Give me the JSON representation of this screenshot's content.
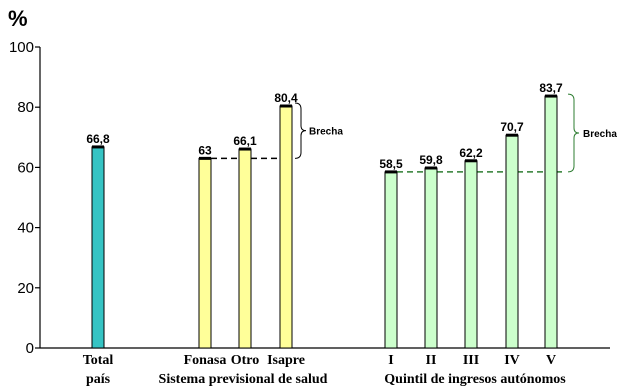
{
  "chart_data": {
    "type": "bar",
    "ylabel": "%",
    "ylim": [
      0,
      100
    ],
    "yticks": [
      0,
      20,
      40,
      60,
      80,
      100
    ],
    "grid": false,
    "bars": [
      {
        "label": "Total",
        "value": 66.8,
        "value_label": "66,8",
        "group": 0,
        "color": "#36c4c4"
      },
      {
        "label": "Fonasa",
        "value": 63,
        "value_label": "63",
        "group": 1,
        "color": "#ffff99"
      },
      {
        "label": "Otro",
        "value": 66.1,
        "value_label": "66,1",
        "group": 1,
        "color": "#ffff99"
      },
      {
        "label": "Isapre",
        "value": 80.4,
        "value_label": "80,4",
        "group": 1,
        "color": "#ffff99"
      },
      {
        "label": "I",
        "value": 58.5,
        "value_label": "58,5",
        "group": 2,
        "color": "#ccffcc"
      },
      {
        "label": "II",
        "value": 59.8,
        "value_label": "59,8",
        "group": 2,
        "color": "#ccffcc"
      },
      {
        "label": "III",
        "value": 62.2,
        "value_label": "62,2",
        "group": 2,
        "color": "#ccffcc"
      },
      {
        "label": "IV",
        "value": 70.7,
        "value_label": "70,7",
        "group": 2,
        "color": "#ccffcc"
      },
      {
        "label": "V",
        "value": 83.7,
        "value_label": "83,7",
        "group": 2,
        "color": "#ccffcc"
      }
    ],
    "group_labels": [
      "país",
      "Sistema previsional de salud",
      "Quintil de ingresos autónomos"
    ],
    "annotations": [
      {
        "text": "Brecha",
        "from_value": 63,
        "to_value": 80.4,
        "line_color": "#000000"
      },
      {
        "text": "Brecha",
        "from_value": 58.5,
        "to_value": 83.7,
        "line_color": "#2e7d32"
      }
    ]
  }
}
